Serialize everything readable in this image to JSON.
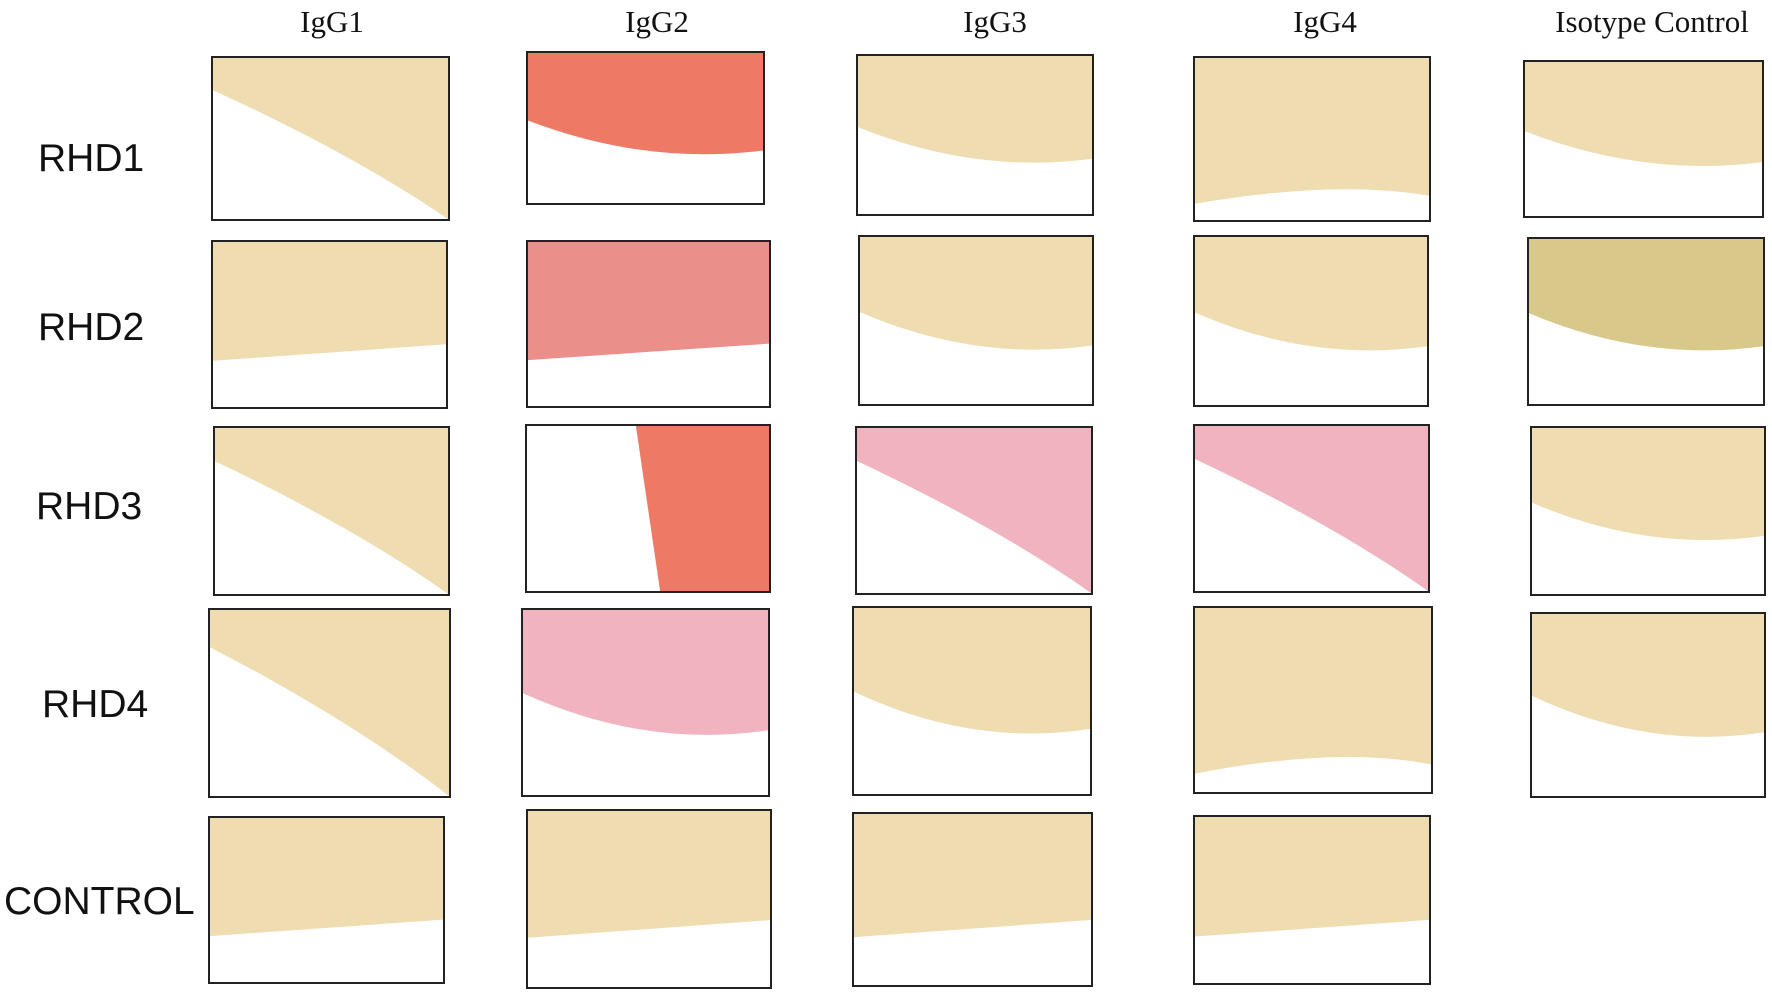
{
  "figure": {
    "columns": [
      "IgG1",
      "IgG2",
      "IgG3",
      "IgG4",
      "Isotype Control"
    ],
    "rows": [
      "RHD1",
      "RHD2",
      "RHD3",
      "RHD4",
      "CONTROL"
    ],
    "colors": {
      "tan": "#efdcb0",
      "pink": "#ea8f8a",
      "red": "#ee7a66",
      "rose": "#f1b3c0",
      "olive": "#d8c88a"
    }
  }
}
